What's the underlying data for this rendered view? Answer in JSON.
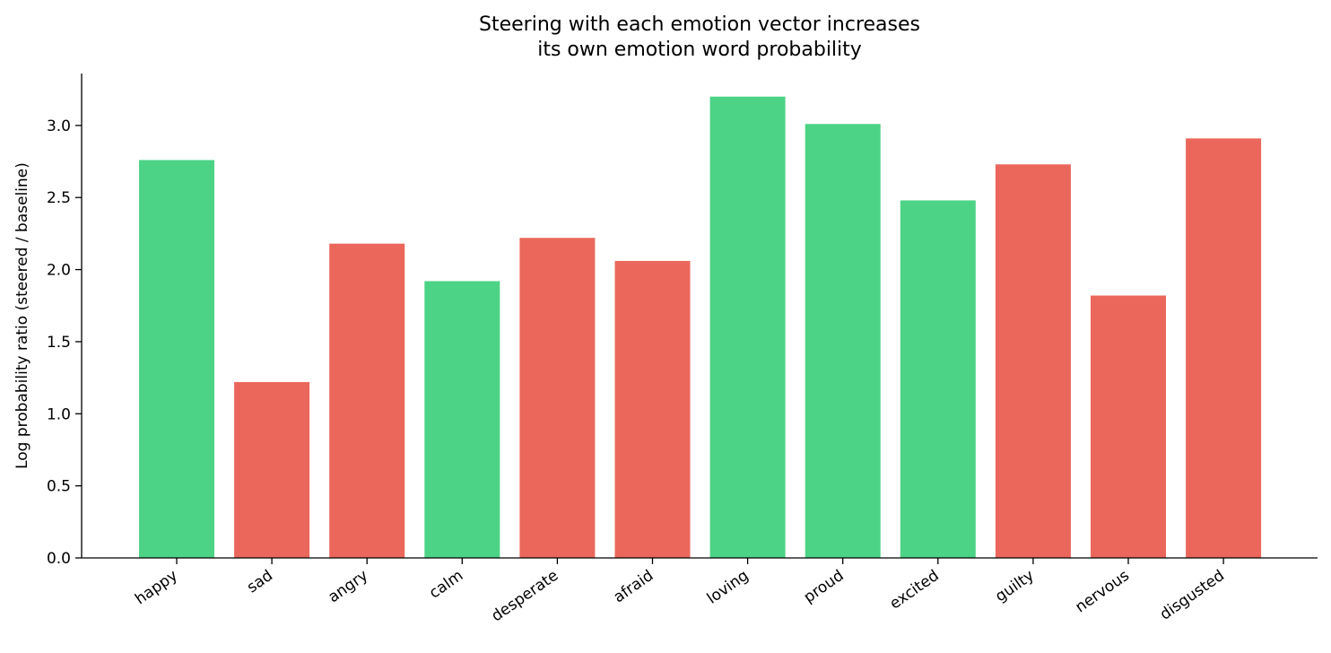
{
  "chart_data": {
    "type": "bar",
    "title": [
      "Steering with each emotion vector increases",
      "its own emotion word probability"
    ],
    "xlabel": "",
    "ylabel": "Log probability ratio (steered / baseline)",
    "ylim": [
      0,
      3.36
    ],
    "yticks": [
      0.0,
      0.5,
      1.0,
      1.5,
      2.0,
      2.5,
      3.0
    ],
    "ytick_labels": [
      "0.0",
      "0.5",
      "1.0",
      "1.5",
      "2.0",
      "2.5",
      "3.0"
    ],
    "grid": false,
    "legend": "none",
    "categories": [
      "happy",
      "sad",
      "angry",
      "calm",
      "desperate",
      "afraid",
      "loving",
      "proud",
      "excited",
      "guilty",
      "nervous",
      "disgusted"
    ],
    "values": [
      2.76,
      1.22,
      2.18,
      1.92,
      2.22,
      2.06,
      3.2,
      3.01,
      2.48,
      2.73,
      1.82,
      2.91
    ],
    "bar_groups": [
      "positive",
      "negative",
      "negative",
      "positive",
      "negative",
      "negative",
      "positive",
      "positive",
      "positive",
      "negative",
      "negative",
      "negative"
    ],
    "colors": {
      "positive": "#4cd386",
      "negative": "#eb675b"
    }
  }
}
